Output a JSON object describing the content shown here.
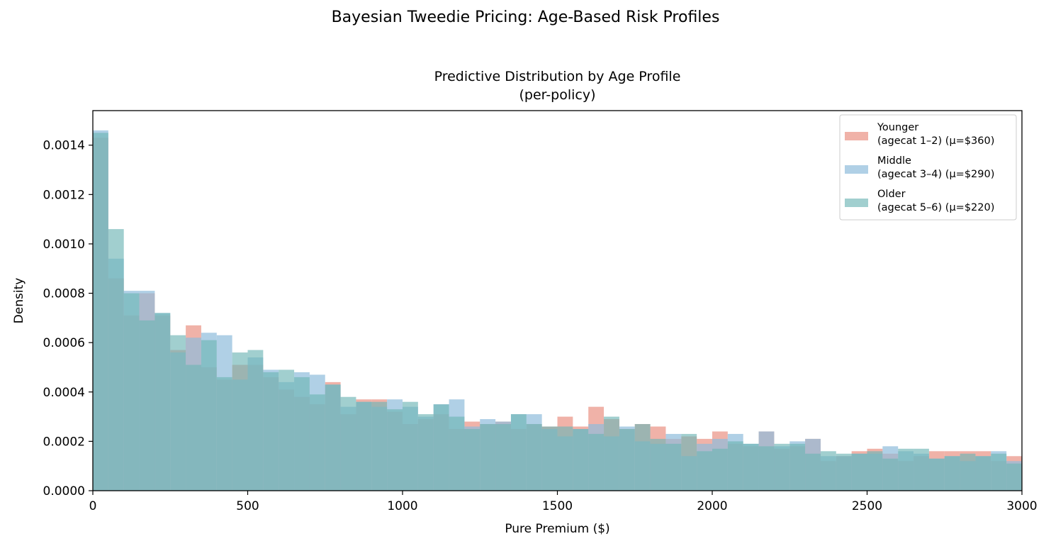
{
  "figure": {
    "suptitle": "Bayesian Tweedie Pricing: Age-Based Risk Profiles"
  },
  "chart_data": {
    "type": "histogram",
    "title_line1": "Predictive Distribution by Age Profile",
    "title_line2": "(per-policy)",
    "xlabel": "Pure Premium ($)",
    "ylabel": "Density",
    "xlim": [
      0,
      3000
    ],
    "ylim": [
      0,
      0.00154
    ],
    "xticks": [
      0,
      500,
      1000,
      1500,
      2000,
      2500,
      3000
    ],
    "yticks": [
      0.0,
      0.0002,
      0.0004,
      0.0006,
      0.0008,
      0.001,
      0.0012,
      0.0014
    ],
    "ytick_labels": [
      "0.0000",
      "0.0002",
      "0.0004",
      "0.0006",
      "0.0008",
      "0.0010",
      "0.0012",
      "0.0014"
    ],
    "grid": false,
    "legend_position": "upper right",
    "bin_width": 50,
    "bin_edges_start": 0,
    "series": [
      {
        "name": "Younger\n(agecat 1–2) (μ=$360)",
        "color": "#e8897a",
        "alpha": 0.65,
        "values": [
          0.00143,
          0.00086,
          0.00071,
          0.0008,
          0.00071,
          0.00057,
          0.00067,
          0.0005,
          0.00045,
          0.00051,
          0.00051,
          0.00046,
          0.00041,
          0.00038,
          0.00035,
          0.00044,
          0.00031,
          0.00037,
          0.00037,
          0.00032,
          0.00027,
          0.00029,
          0.00031,
          0.00025,
          0.00028,
          0.00027,
          0.00028,
          0.00025,
          0.00027,
          0.00026,
          0.0003,
          0.00026,
          0.00034,
          0.00029,
          0.00025,
          0.00027,
          0.00026,
          0.00021,
          0.00022,
          0.00021,
          0.00024,
          0.00019,
          0.00018,
          0.00024,
          0.00017,
          0.00018,
          0.00021,
          0.00012,
          0.00014,
          0.00016,
          0.00017,
          0.00015,
          0.00012,
          0.00014,
          0.00016,
          0.00016,
          0.00016,
          0.00016,
          0.00012,
          0.00014
        ]
      },
      {
        "name": "Middle\n(agecat 3–4) (μ=$290)",
        "color": "#8fbcdb",
        "alpha": 0.7,
        "values": [
          0.00146,
          0.00094,
          0.00081,
          0.00081,
          0.00072,
          0.00056,
          0.00062,
          0.00064,
          0.00063,
          0.00045,
          0.00054,
          0.00049,
          0.00044,
          0.00048,
          0.00047,
          0.00043,
          0.00034,
          0.00036,
          0.00034,
          0.00037,
          0.00034,
          0.0003,
          0.00035,
          0.00037,
          0.00026,
          0.00029,
          0.00028,
          0.00031,
          0.00031,
          0.00025,
          0.00022,
          0.00025,
          0.00027,
          0.00022,
          0.00026,
          0.0002,
          0.00019,
          0.00023,
          0.00014,
          0.00019,
          0.00021,
          0.00023,
          0.00019,
          0.00024,
          0.00018,
          0.0002,
          0.00021,
          0.00014,
          0.00014,
          0.00015,
          0.00015,
          0.00018,
          0.00016,
          0.00015,
          0.00013,
          0.00014,
          0.00012,
          0.00014,
          0.00016,
          0.00012
        ]
      },
      {
        "name": "Older\n(agecat 5–6) (μ=$220)",
        "color": "#6fb5b5",
        "alpha": 0.65,
        "values": [
          0.00145,
          0.00106,
          0.0008,
          0.00069,
          0.00072,
          0.00063,
          0.00051,
          0.00061,
          0.00046,
          0.00056,
          0.00057,
          0.00048,
          0.00049,
          0.00046,
          0.00039,
          0.00043,
          0.00038,
          0.00036,
          0.00036,
          0.00033,
          0.00036,
          0.00031,
          0.00035,
          0.0003,
          0.00025,
          0.00027,
          0.00027,
          0.00031,
          0.00027,
          0.00026,
          0.00026,
          0.00025,
          0.00023,
          0.0003,
          0.00025,
          0.00027,
          0.00021,
          0.00019,
          0.00023,
          0.00016,
          0.00017,
          0.0002,
          0.00019,
          0.00018,
          0.00019,
          0.00019,
          0.00015,
          0.00016,
          0.00015,
          0.00015,
          0.00016,
          0.00013,
          0.00017,
          0.00017,
          0.00013,
          0.00014,
          0.00015,
          0.00014,
          0.00015,
          0.00011
        ]
      }
    ]
  }
}
